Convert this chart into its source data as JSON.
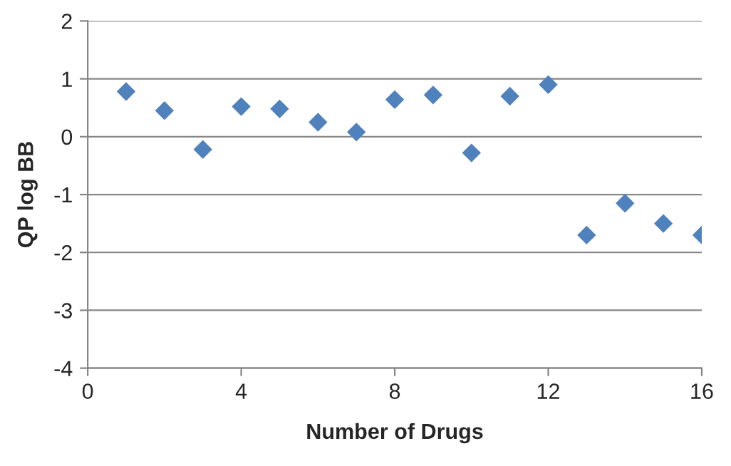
{
  "chart_data": {
    "type": "scatter",
    "xlabel": "Number of Drugs",
    "ylabel": "QP log BB",
    "x": [
      1,
      2,
      3,
      4,
      5,
      6,
      7,
      8,
      9,
      10,
      11,
      12,
      13,
      14,
      15,
      16
    ],
    "series": [
      {
        "color": "#4f81bd",
        "values": [
          0.78,
          0.45,
          -0.22,
          0.52,
          0.48,
          0.25,
          0.08,
          0.64,
          0.72,
          -0.28,
          0.7,
          0.9,
          -1.7,
          -1.15,
          -1.5,
          -1.7
        ]
      }
    ],
    "xlim": [
      0,
      16
    ],
    "ylim": [
      -4,
      2
    ],
    "xticks": [
      0,
      4,
      8,
      12,
      16
    ],
    "yticks": [
      -4,
      -3,
      -2,
      -1,
      0,
      1,
      2
    ],
    "grid": "y",
    "marker": "diamond",
    "legend": false
  }
}
